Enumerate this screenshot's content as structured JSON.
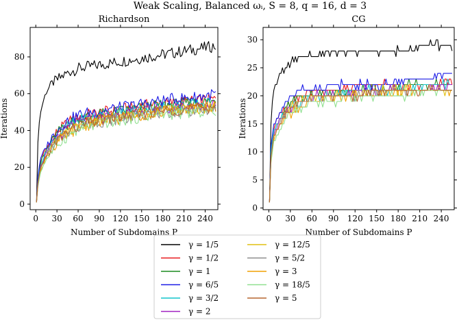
{
  "figure_title": "Weak Scaling, Balanced ωᵢ, S = 8, q = 16, d = 3",
  "chart_data": [
    {
      "type": "line",
      "title": "Richardson",
      "xlabel": "Number of Subdomains P",
      "ylabel": "Iterations",
      "xlim": [
        -8,
        258
      ],
      "ylim": [
        -3,
        96
      ],
      "xticks": [
        0,
        30,
        60,
        90,
        120,
        150,
        180,
        210,
        240
      ],
      "yticks": [
        0,
        20,
        40,
        60,
        80
      ],
      "x": [
        1,
        2,
        4,
        6,
        8,
        12,
        16,
        24,
        32,
        48,
        64,
        96,
        128,
        160,
        192,
        224,
        256
      ],
      "series": [
        {
          "name": "γ = 1/5",
          "color": "#000000",
          "values": [
            1,
            25,
            42,
            48,
            52,
            58,
            62,
            66,
            68,
            72,
            74,
            76,
            78,
            80,
            82,
            84,
            86
          ]
        },
        {
          "name": "γ = 1/2",
          "color": "#e8181c",
          "values": [
            1,
            10,
            18,
            22,
            25,
            28,
            31,
            36,
            40,
            45,
            48,
            50,
            52,
            54,
            55,
            56,
            57
          ]
        },
        {
          "name": "γ = 1",
          "color": "#1a8a1f",
          "values": [
            1,
            10,
            17,
            21,
            24,
            27,
            30,
            35,
            39,
            44,
            47,
            49,
            51,
            53,
            54,
            55,
            56
          ]
        },
        {
          "name": "γ = 6/5",
          "color": "#1a1ae6",
          "values": [
            1,
            11,
            19,
            23,
            26,
            29,
            32,
            37,
            41,
            46,
            49,
            51,
            53,
            55,
            57,
            58,
            60
          ]
        },
        {
          "name": "γ = 3/2",
          "color": "#11c4cc",
          "values": [
            1,
            9,
            16,
            20,
            23,
            26,
            29,
            34,
            38,
            43,
            46,
            48,
            50,
            52,
            53,
            54,
            55
          ]
        },
        {
          "name": "γ = 2",
          "color": "#a020c0",
          "values": [
            1,
            9,
            15,
            19,
            22,
            25,
            28,
            33,
            37,
            42,
            45,
            47,
            49,
            51,
            52,
            53,
            54
          ]
        },
        {
          "name": "γ = 12/5",
          "color": "#e0c010",
          "values": [
            1,
            8,
            14,
            18,
            21,
            24,
            27,
            32,
            35,
            40,
            43,
            46,
            48,
            50,
            51,
            52,
            53
          ]
        },
        {
          "name": "γ = 5/2",
          "color": "#8c8c8c",
          "values": [
            1,
            8,
            14,
            18,
            21,
            24,
            27,
            31,
            35,
            40,
            43,
            45,
            47,
            49,
            50,
            51,
            52
          ]
        },
        {
          "name": "γ = 3",
          "color": "#f0a000",
          "values": [
            1,
            7,
            13,
            17,
            20,
            23,
            26,
            30,
            34,
            39,
            42,
            45,
            47,
            49,
            51,
            52,
            53
          ]
        },
        {
          "name": "γ = 18/5",
          "color": "#90e090",
          "values": [
            1,
            7,
            12,
            16,
            19,
            22,
            25,
            29,
            33,
            38,
            41,
            44,
            46,
            48,
            49,
            50,
            51
          ]
        },
        {
          "name": "γ = 5",
          "color": "#b5652e",
          "values": [
            1,
            8,
            14,
            18,
            21,
            24,
            27,
            31,
            35,
            40,
            43,
            46,
            48,
            50,
            51,
            52,
            53
          ]
        }
      ]
    },
    {
      "type": "line",
      "title": "CG",
      "xlabel": "Number of Subdomains P",
      "ylabel": "Iterations",
      "xlim": [
        -8,
        258
      ],
      "ylim": [
        -0.3,
        32.2
      ],
      "xticks": [
        0,
        30,
        60,
        90,
        120,
        150,
        180,
        210,
        240
      ],
      "yticks": [
        0,
        5,
        10,
        15,
        20,
        25,
        30
      ],
      "x": [
        1,
        2,
        4,
        6,
        8,
        12,
        16,
        24,
        32,
        48,
        64,
        96,
        128,
        160,
        192,
        224,
        256
      ],
      "series": [
        {
          "name": "γ = 1/5",
          "color": "#000000",
          "values": [
            1,
            12,
            17,
            20,
            21,
            23,
            24,
            25,
            26,
            27,
            27,
            28,
            28,
            28,
            28,
            29,
            29
          ]
        },
        {
          "name": "γ = 1/2",
          "color": "#e8181c",
          "values": [
            1,
            8,
            11,
            13,
            14,
            16,
            17,
            18,
            19,
            20,
            21,
            21,
            22,
            22,
            22,
            22,
            23
          ]
        },
        {
          "name": "γ = 1",
          "color": "#1a8a1f",
          "values": [
            1,
            8,
            11,
            13,
            14,
            15,
            16,
            18,
            19,
            20,
            20,
            21,
            21,
            21,
            22,
            22,
            22
          ]
        },
        {
          "name": "γ = 6/5",
          "color": "#1a1ae6",
          "values": [
            1,
            9,
            12,
            14,
            15,
            16,
            17,
            19,
            20,
            21,
            21,
            22,
            22,
            22,
            23,
            23,
            24
          ]
        },
        {
          "name": "γ = 3/2",
          "color": "#11c4cc",
          "values": [
            1,
            8,
            11,
            13,
            14,
            15,
            16,
            17,
            18,
            19,
            20,
            20,
            21,
            21,
            21,
            22,
            22
          ]
        },
        {
          "name": "γ = 2",
          "color": "#a020c0",
          "values": [
            1,
            7,
            10,
            12,
            13,
            15,
            16,
            17,
            18,
            19,
            20,
            20,
            21,
            21,
            21,
            21,
            22
          ]
        },
        {
          "name": "γ = 12/5",
          "color": "#e0c010",
          "values": [
            1,
            7,
            10,
            12,
            13,
            14,
            15,
            17,
            18,
            19,
            20,
            20,
            20,
            21,
            21,
            21,
            21
          ]
        },
        {
          "name": "γ = 5/2",
          "color": "#8c8c8c",
          "values": [
            1,
            7,
            10,
            12,
            13,
            14,
            15,
            17,
            18,
            19,
            19,
            20,
            20,
            21,
            21,
            21,
            21
          ]
        },
        {
          "name": "γ = 3",
          "color": "#f0a000",
          "values": [
            1,
            7,
            10,
            12,
            13,
            14,
            15,
            16,
            17,
            18,
            19,
            20,
            20,
            20,
            21,
            21,
            21
          ]
        },
        {
          "name": "γ = 18/5",
          "color": "#90e090",
          "values": [
            1,
            6,
            9,
            11,
            12,
            13,
            14,
            16,
            17,
            18,
            19,
            19,
            20,
            20,
            20,
            21,
            21
          ]
        },
        {
          "name": "γ = 5",
          "color": "#b5652e",
          "values": [
            1,
            7,
            10,
            12,
            13,
            14,
            15,
            17,
            18,
            19,
            20,
            20,
            20,
            21,
            21,
            21,
            21
          ]
        }
      ]
    }
  ]
}
